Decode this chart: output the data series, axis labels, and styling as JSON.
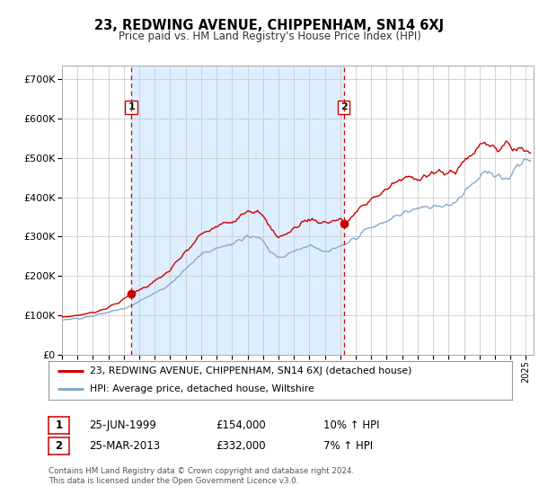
{
  "title": "23, REDWING AVENUE, CHIPPENHAM, SN14 6XJ",
  "subtitle": "Price paid vs. HM Land Registry's House Price Index (HPI)",
  "ytick_values": [
    0,
    100000,
    200000,
    300000,
    400000,
    500000,
    600000,
    700000
  ],
  "ylim": [
    0,
    735000
  ],
  "xlim_start": 1995.0,
  "xlim_end": 2025.5,
  "transaction1_date": 1999.48,
  "transaction1_price": 154000,
  "transaction1_label": "1",
  "transaction2_date": 2013.23,
  "transaction2_price": 332000,
  "transaction2_label": "2",
  "legend_line1": "23, REDWING AVENUE, CHIPPENHAM, SN14 6XJ (detached house)",
  "legend_line2": "HPI: Average price, detached house, Wiltshire",
  "table_row1": [
    "1",
    "25-JUN-1999",
    "£154,000",
    "10% ↑ HPI"
  ],
  "table_row2": [
    "2",
    "25-MAR-2013",
    "£332,000",
    "7% ↑ HPI"
  ],
  "footer": "Contains HM Land Registry data © Crown copyright and database right 2024.\nThis data is licensed under the Open Government Licence v3.0.",
  "line_color_red": "#cc0000",
  "line_color_blue": "#88aacc",
  "dashed_line_color": "#cc0000",
  "shade_color": "#ddeeff",
  "background_color": "#ffffff",
  "grid_color": "#cccccc",
  "title_fontsize": 10.5,
  "subtitle_fontsize": 8.5
}
